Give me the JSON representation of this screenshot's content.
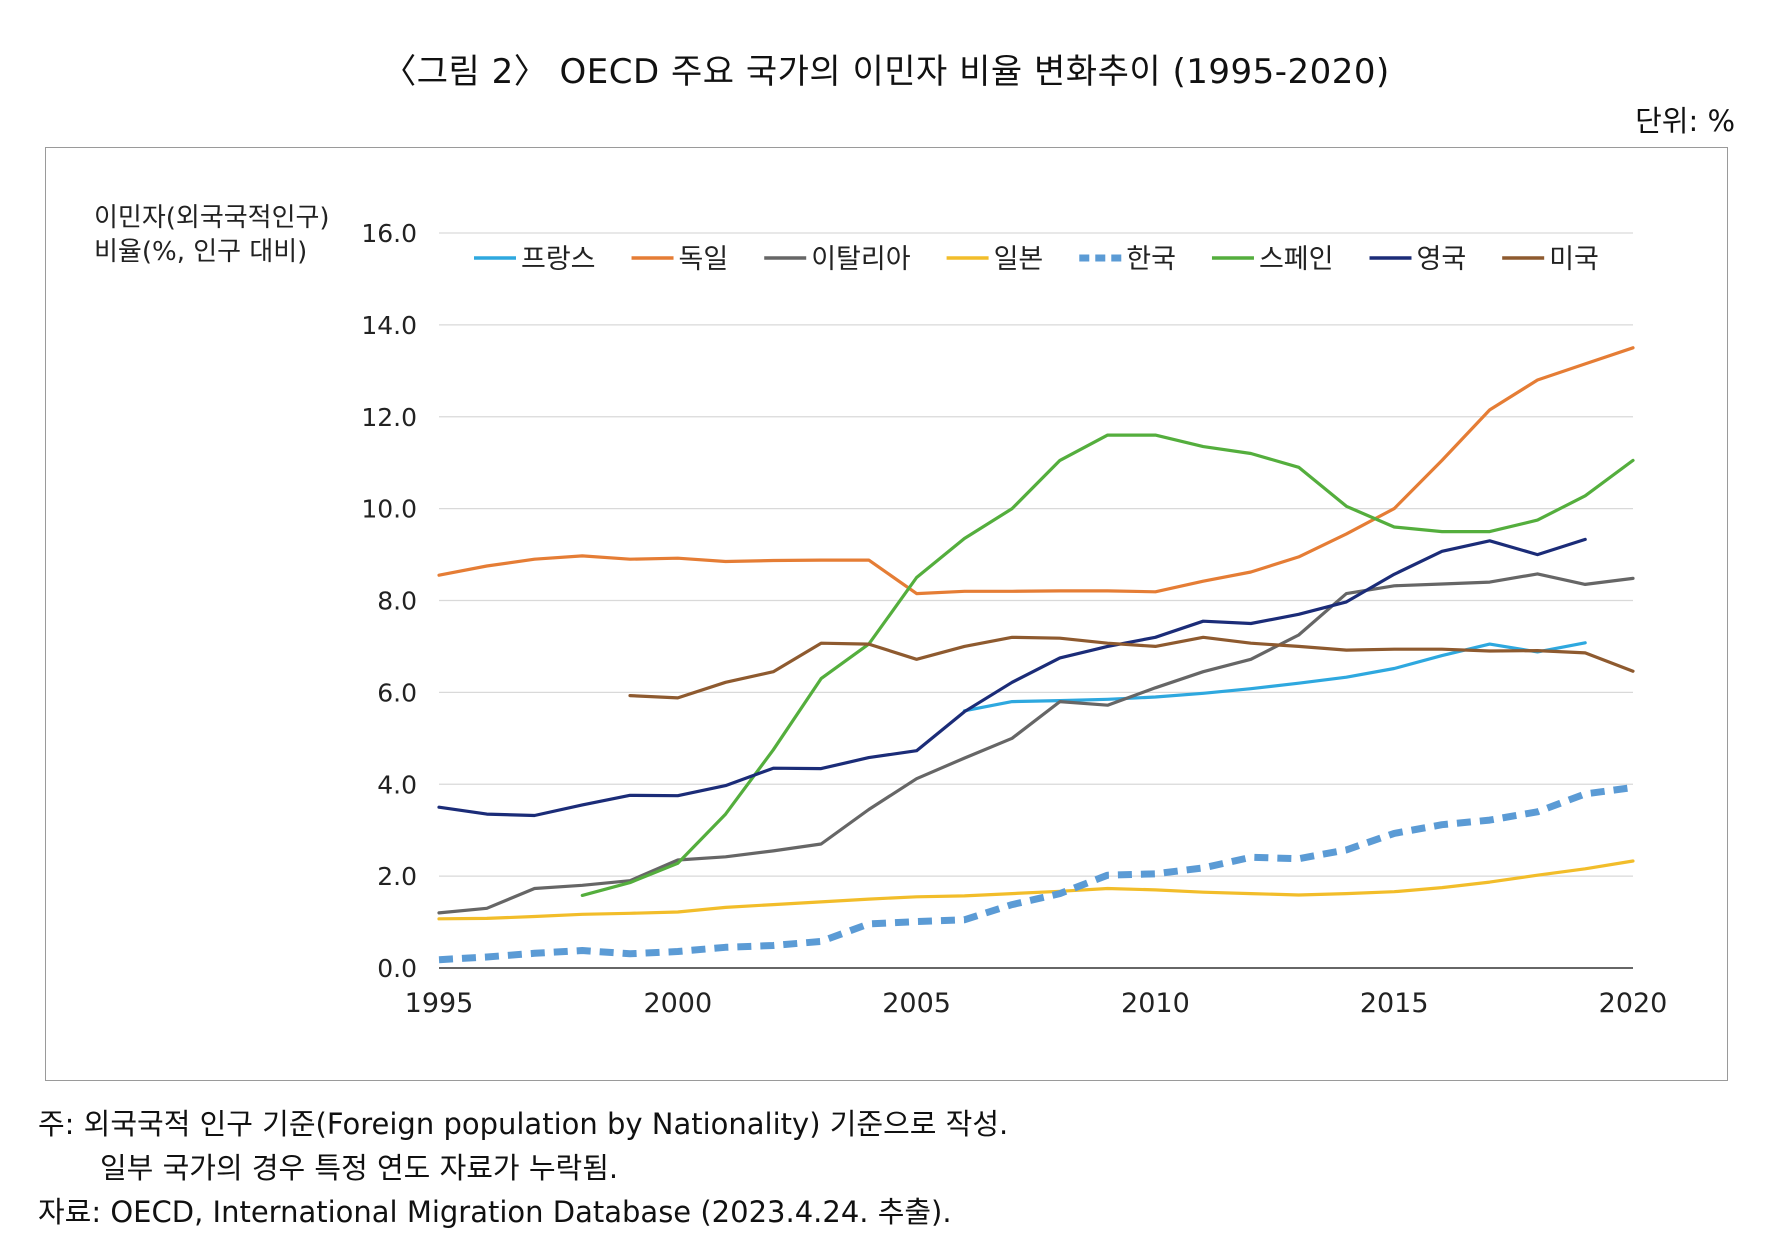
{
  "figure_title": "〈그림 2〉 OECD 주요 국가의 이민자 비율 변화추이 (1995-2020)",
  "unit_label": "단위: %",
  "notes": {
    "line1": "주: 외국국적 인구 기준(Foreign population by Nationality) 기준으로 작성.",
    "line2": "일부 국가의 경우 특정 연도 자료가 누락됨.",
    "source": "자료: OECD, International Migration Database (2023.4.24. 추출)."
  },
  "chart_data": {
    "type": "line",
    "title": "",
    "ylabel_lines": [
      "이민자(외국국적인구)",
      "비율(%, 인구 대비)"
    ],
    "xlabel": "",
    "xlim": [
      1995,
      2020
    ],
    "ylim": [
      0,
      16
    ],
    "x_ticks": [
      "1995",
      "2000",
      "2005",
      "2010",
      "2015",
      "2020"
    ],
    "y_ticks": [
      "0.0",
      "2.0",
      "4.0",
      "6.0",
      "8.0",
      "10.0",
      "12.0",
      "14.0",
      "16.0"
    ],
    "grid": "horizontal",
    "legend_position": "top",
    "series": [
      {
        "name": "프랑스",
        "color": "#2EA8DF",
        "dashed": false,
        "x": [
          2006,
          2007,
          2008,
          2009,
          2010,
          2011,
          2012,
          2013,
          2014,
          2015,
          2016,
          2017,
          2018,
          2019
        ],
        "y": [
          5.6,
          5.8,
          5.82,
          5.85,
          5.9,
          5.98,
          6.08,
          6.2,
          6.33,
          6.52,
          6.8,
          7.05,
          6.88,
          7.08
        ]
      },
      {
        "name": "독일",
        "color": "#E57D35",
        "dashed": false,
        "x": [
          1995,
          1996,
          1997,
          1998,
          1999,
          2000,
          2001,
          2002,
          2003,
          2004,
          2005,
          2006,
          2007,
          2008,
          2009,
          2010,
          2011,
          2012,
          2013,
          2014,
          2015,
          2016,
          2017,
          2018,
          2019,
          2020
        ],
        "y": [
          8.55,
          8.75,
          8.9,
          8.97,
          8.9,
          8.92,
          8.85,
          8.87,
          8.88,
          8.88,
          8.15,
          8.2,
          8.2,
          8.21,
          8.21,
          8.19,
          8.42,
          8.62,
          8.95,
          9.45,
          10.0,
          11.05,
          12.15,
          12.8,
          13.15,
          13.5
        ]
      },
      {
        "name": "이탈리아",
        "color": "#666666",
        "dashed": false,
        "x": [
          1995,
          1996,
          1997,
          1998,
          1999,
          2000,
          2001,
          2002,
          2003,
          2004,
          2005,
          2006,
          2007,
          2008,
          2009,
          2010,
          2011,
          2012,
          2013,
          2014,
          2015,
          2016,
          2017,
          2018,
          2019,
          2020
        ],
        "y": [
          1.2,
          1.3,
          1.73,
          1.8,
          1.9,
          2.35,
          2.42,
          2.55,
          2.7,
          3.45,
          4.12,
          4.57,
          5.0,
          5.8,
          5.72,
          6.1,
          6.45,
          6.72,
          7.25,
          8.15,
          8.32,
          8.36,
          8.4,
          8.58,
          8.35,
          8.48
        ]
      },
      {
        "name": "일본",
        "color": "#F2BD2A",
        "dashed": false,
        "x": [
          1995,
          1996,
          1997,
          1998,
          1999,
          2000,
          2001,
          2002,
          2003,
          2004,
          2005,
          2006,
          2007,
          2008,
          2009,
          2010,
          2011,
          2012,
          2013,
          2014,
          2015,
          2016,
          2017,
          2018,
          2019,
          2020
        ],
        "y": [
          1.07,
          1.08,
          1.12,
          1.17,
          1.19,
          1.22,
          1.32,
          1.38,
          1.44,
          1.5,
          1.55,
          1.57,
          1.62,
          1.67,
          1.73,
          1.7,
          1.65,
          1.62,
          1.59,
          1.62,
          1.66,
          1.75,
          1.87,
          2.02,
          2.16,
          2.33
        ]
      },
      {
        "name": "한국",
        "color": "#5B9BD5",
        "dashed": true,
        "x": [
          1995,
          1996,
          1997,
          1998,
          1999,
          2000,
          2001,
          2002,
          2003,
          2004,
          2005,
          2006,
          2007,
          2008,
          2009,
          2010,
          2011,
          2012,
          2013,
          2014,
          2015,
          2016,
          2017,
          2018,
          2019,
          2020
        ],
        "y": [
          0.18,
          0.24,
          0.32,
          0.38,
          0.31,
          0.36,
          0.45,
          0.49,
          0.58,
          0.96,
          1.01,
          1.05,
          1.38,
          1.62,
          2.02,
          2.05,
          2.18,
          2.41,
          2.38,
          2.57,
          2.93,
          3.12,
          3.22,
          3.4,
          3.79,
          3.93
        ]
      },
      {
        "name": "스페인",
        "color": "#54AE3D",
        "dashed": false,
        "x": [
          1998,
          1999,
          2000,
          2001,
          2002,
          2003,
          2004,
          2005,
          2006,
          2007,
          2008,
          2009,
          2010,
          2011,
          2012,
          2013,
          2014,
          2015,
          2016,
          2017,
          2018,
          2019,
          2020
        ],
        "y": [
          1.58,
          1.86,
          2.28,
          3.35,
          4.75,
          6.3,
          7.05,
          8.5,
          9.35,
          10.0,
          11.05,
          11.6,
          11.6,
          11.35,
          11.2,
          10.9,
          10.05,
          9.6,
          9.5,
          9.5,
          9.75,
          10.28,
          11.05
        ]
      },
      {
        "name": "영국",
        "color": "#1B2C78",
        "dashed": false,
        "x": [
          1995,
          1996,
          1997,
          1998,
          1999,
          2000,
          2001,
          2002,
          2003,
          2004,
          2005,
          2006,
          2007,
          2008,
          2009,
          2010,
          2011,
          2012,
          2013,
          2014,
          2015,
          2016,
          2017,
          2018,
          2019
        ],
        "y": [
          3.5,
          3.35,
          3.32,
          3.55,
          3.76,
          3.75,
          3.97,
          4.35,
          4.34,
          4.58,
          4.73,
          5.58,
          6.22,
          6.75,
          7.0,
          7.2,
          7.55,
          7.5,
          7.7,
          7.97,
          8.57,
          9.07,
          9.3,
          9.0,
          9.33
        ]
      },
      {
        "name": "미국",
        "color": "#8E5A2F",
        "dashed": false,
        "x": [
          1999,
          2000,
          2001,
          2002,
          2003,
          2004,
          2005,
          2006,
          2007,
          2008,
          2009,
          2010,
          2011,
          2012,
          2013,
          2014,
          2015,
          2016,
          2017,
          2018,
          2019,
          2020
        ],
        "y": [
          5.93,
          5.88,
          6.22,
          6.45,
          7.07,
          7.05,
          6.72,
          7.0,
          7.2,
          7.18,
          7.07,
          7.0,
          7.2,
          7.07,
          7.0,
          6.92,
          6.94,
          6.94,
          6.9,
          6.91,
          6.86,
          6.46
        ]
      }
    ]
  }
}
